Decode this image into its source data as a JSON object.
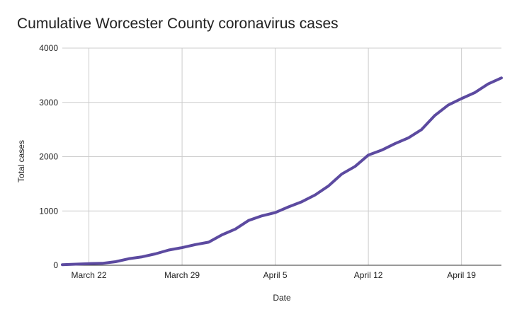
{
  "chart_data": {
    "type": "line",
    "title": "Cumulative Worcester County coronavirus cases",
    "xlabel": "Date",
    "ylabel": "Total cases",
    "ylim": [
      0,
      4000
    ],
    "yticks": [
      "0",
      "1000",
      "2000",
      "3000",
      "4000"
    ],
    "xticks": [
      {
        "label": "March 22",
        "date": "2020-03-22"
      },
      {
        "label": "March 29",
        "date": "2020-03-29"
      },
      {
        "label": "April 5",
        "date": "2020-04-05"
      },
      {
        "label": "April 12",
        "date": "2020-04-12"
      },
      {
        "label": "April 19",
        "date": "2020-04-19"
      }
    ],
    "xlim": [
      "2020-03-20",
      "2020-04-22"
    ],
    "grid": true,
    "colors": {
      "series": "#5c4aa0"
    },
    "series": [
      {
        "points": [
          {
            "x": "2020-03-20",
            "y": 10
          },
          {
            "x": "2020-03-21",
            "y": 20
          },
          {
            "x": "2020-03-22",
            "y": 30
          },
          {
            "x": "2020-03-23",
            "y": 35
          },
          {
            "x": "2020-03-24",
            "y": 65
          },
          {
            "x": "2020-03-25",
            "y": 120
          },
          {
            "x": "2020-03-26",
            "y": 155
          },
          {
            "x": "2020-03-27",
            "y": 210
          },
          {
            "x": "2020-03-28",
            "y": 280
          },
          {
            "x": "2020-03-29",
            "y": 325
          },
          {
            "x": "2020-03-30",
            "y": 380
          },
          {
            "x": "2020-03-31",
            "y": 425
          },
          {
            "x": "2020-04-01",
            "y": 560
          },
          {
            "x": "2020-04-02",
            "y": 665
          },
          {
            "x": "2020-04-03",
            "y": 825
          },
          {
            "x": "2020-04-04",
            "y": 910
          },
          {
            "x": "2020-04-05",
            "y": 970
          },
          {
            "x": "2020-04-06",
            "y": 1075
          },
          {
            "x": "2020-04-07",
            "y": 1170
          },
          {
            "x": "2020-04-08",
            "y": 1295
          },
          {
            "x": "2020-04-09",
            "y": 1460
          },
          {
            "x": "2020-04-10",
            "y": 1680
          },
          {
            "x": "2020-04-11",
            "y": 1820
          },
          {
            "x": "2020-04-12",
            "y": 2030
          },
          {
            "x": "2020-04-13",
            "y": 2120
          },
          {
            "x": "2020-04-14",
            "y": 2240
          },
          {
            "x": "2020-04-15",
            "y": 2345
          },
          {
            "x": "2020-04-16",
            "y": 2500
          },
          {
            "x": "2020-04-17",
            "y": 2760
          },
          {
            "x": "2020-04-18",
            "y": 2950
          },
          {
            "x": "2020-04-19",
            "y": 3070
          },
          {
            "x": "2020-04-20",
            "y": 3180
          },
          {
            "x": "2020-04-21",
            "y": 3340
          },
          {
            "x": "2020-04-22",
            "y": 3450
          }
        ]
      }
    ]
  }
}
